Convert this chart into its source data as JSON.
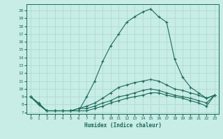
{
  "xlabel": "Humidex (Indice chaleur)",
  "xlim": [
    -0.5,
    23.5
  ],
  "ylim": [
    6.8,
    20.8
  ],
  "yticks": [
    7,
    8,
    9,
    10,
    11,
    12,
    13,
    14,
    15,
    16,
    17,
    18,
    19,
    20
  ],
  "xticks": [
    0,
    1,
    2,
    3,
    4,
    5,
    6,
    7,
    8,
    9,
    10,
    11,
    12,
    13,
    14,
    15,
    16,
    17,
    18,
    19,
    20,
    21,
    22,
    23
  ],
  "background_color": "#c8ece6",
  "grid_color": "#a8d8ce",
  "line_color": "#1a6b5a",
  "lines": [
    {
      "x": [
        0,
        1,
        2,
        3,
        4,
        5,
        6,
        7,
        8,
        9,
        10,
        11,
        12,
        13,
        14,
        15,
        16,
        17,
        18,
        19,
        20,
        21,
        22,
        23
      ],
      "y": [
        9.0,
        8.2,
        7.2,
        7.2,
        7.2,
        7.2,
        7.2,
        9.0,
        11.0,
        13.5,
        15.5,
        17.0,
        18.5,
        19.2,
        19.8,
        20.2,
        19.2,
        18.5,
        13.8,
        11.5,
        10.2,
        9.5,
        8.8,
        9.2
      ]
    },
    {
      "x": [
        0,
        1,
        2,
        3,
        4,
        5,
        6,
        7,
        8,
        9,
        10,
        11,
        12,
        13,
        14,
        15,
        16,
        17,
        18,
        19,
        20,
        21,
        22,
        23
      ],
      "y": [
        9.0,
        8.0,
        7.2,
        7.2,
        7.2,
        7.2,
        7.5,
        7.8,
        8.2,
        8.8,
        9.5,
        10.2,
        10.5,
        10.8,
        11.0,
        11.2,
        11.0,
        10.5,
        10.0,
        9.8,
        9.5,
        9.2,
        8.8,
        9.2
      ]
    },
    {
      "x": [
        0,
        1,
        2,
        3,
        4,
        5,
        6,
        7,
        8,
        9,
        10,
        11,
        12,
        13,
        14,
        15,
        16,
        17,
        18,
        19,
        20,
        21,
        22,
        23
      ],
      "y": [
        9.0,
        8.0,
        7.2,
        7.2,
        7.2,
        7.2,
        7.5,
        7.5,
        7.8,
        8.2,
        8.5,
        9.0,
        9.2,
        9.5,
        9.8,
        10.0,
        9.8,
        9.5,
        9.2,
        9.0,
        8.8,
        8.5,
        8.2,
        9.2
      ]
    },
    {
      "x": [
        0,
        1,
        2,
        3,
        4,
        5,
        6,
        7,
        8,
        9,
        10,
        11,
        12,
        13,
        14,
        15,
        16,
        17,
        18,
        19,
        20,
        21,
        22,
        23
      ],
      "y": [
        9.0,
        8.0,
        7.2,
        7.2,
        7.2,
        7.2,
        7.2,
        7.2,
        7.5,
        7.8,
        8.2,
        8.5,
        8.8,
        9.0,
        9.2,
        9.5,
        9.5,
        9.2,
        9.0,
        8.8,
        8.5,
        8.2,
        7.8,
        9.2
      ]
    }
  ],
  "marker": "+",
  "markersize": 3,
  "markeredgewidth": 0.8,
  "linewidth": 0.8
}
